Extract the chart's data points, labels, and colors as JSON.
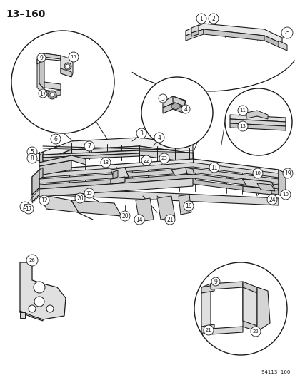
{
  "title": "13–160",
  "page_code": "94113  160",
  "bg_color": "#ffffff",
  "line_color": "#1a1a1a",
  "fig_width": 4.14,
  "fig_height": 5.33,
  "dpi": 100
}
